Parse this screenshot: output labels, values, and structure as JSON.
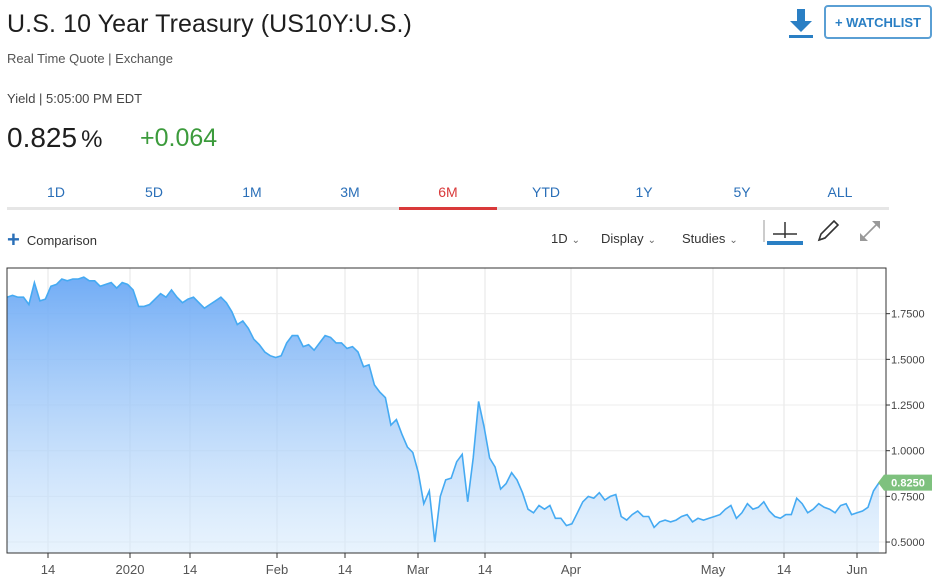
{
  "header": {
    "title": "U.S. 10 Year Treasury (US10Y:U.S.)",
    "subtitle": "Real Time Quote | Exchange",
    "watchlist_label": "+ WATCHLIST",
    "download_icon": "download-icon"
  },
  "quote": {
    "yield_time": "Yield | 5:05:00 PM EDT",
    "value": "0.825",
    "unit": "%",
    "change": "+0.064"
  },
  "tabs": [
    {
      "label": "1D"
    },
    {
      "label": "5D"
    },
    {
      "label": "1M"
    },
    {
      "label": "3M"
    },
    {
      "label": "6M",
      "active": true
    },
    {
      "label": "YTD"
    },
    {
      "label": "1Y"
    },
    {
      "label": "5Y"
    },
    {
      "label": "ALL"
    }
  ],
  "toolbar": {
    "comparison_label": "Comparison",
    "interval_label": "1D",
    "display_label": "Display",
    "studies_label": "Studies"
  },
  "colors": {
    "accent": "#2a6fb8",
    "active_tab": "#d9393a",
    "positive": "#3c9b3c",
    "line": "#45aaf2",
    "last_badge": "#7ec17e"
  },
  "chart_data": {
    "type": "area",
    "x_tick_labels": [
      "14",
      "2020",
      "14",
      "Feb",
      "14",
      "Mar",
      "14",
      "Apr",
      "May",
      "14",
      "Jun"
    ],
    "y_tick_labels": [
      "1.7500",
      "1.5000",
      "1.2500",
      "1.0000",
      "0.7500",
      "0.5000"
    ],
    "y_ticks": [
      1.75,
      1.5,
      1.25,
      1.0,
      0.75,
      0.5
    ],
    "ylim": [
      0.44,
      2.0
    ],
    "last_value_label": "0.8250",
    "last_value": 0.825,
    "values": [
      1.84,
      1.85,
      1.84,
      1.84,
      1.8,
      1.92,
      1.82,
      1.83,
      1.9,
      1.91,
      1.94,
      1.93,
      1.94,
      1.94,
      1.95,
      1.93,
      1.93,
      1.9,
      1.91,
      1.92,
      1.89,
      1.92,
      1.91,
      1.88,
      1.79,
      1.79,
      1.8,
      1.83,
      1.86,
      1.84,
      1.88,
      1.84,
      1.81,
      1.83,
      1.84,
      1.81,
      1.78,
      1.8,
      1.82,
      1.84,
      1.81,
      1.76,
      1.69,
      1.71,
      1.67,
      1.61,
      1.58,
      1.54,
      1.52,
      1.51,
      1.52,
      1.59,
      1.63,
      1.63,
      1.57,
      1.58,
      1.55,
      1.59,
      1.63,
      1.62,
      1.59,
      1.59,
      1.56,
      1.57,
      1.54,
      1.46,
      1.47,
      1.36,
      1.32,
      1.29,
      1.14,
      1.17,
      1.09,
      1.02,
      0.99,
      0.88,
      0.71,
      0.78,
      0.5,
      0.75,
      0.84,
      0.85,
      0.94,
      0.98,
      0.72,
      0.96,
      1.27,
      1.13,
      0.96,
      0.91,
      0.79,
      0.82,
      0.88,
      0.84,
      0.77,
      0.68,
      0.66,
      0.7,
      0.68,
      0.7,
      0.63,
      0.63,
      0.59,
      0.6,
      0.66,
      0.72,
      0.75,
      0.74,
      0.77,
      0.73,
      0.75,
      0.76,
      0.64,
      0.62,
      0.65,
      0.67,
      0.64,
      0.64,
      0.58,
      0.61,
      0.62,
      0.61,
      0.62,
      0.64,
      0.65,
      0.61,
      0.63,
      0.62,
      0.63,
      0.64,
      0.65,
      0.68,
      0.7,
      0.63,
      0.66,
      0.71,
      0.68,
      0.69,
      0.72,
      0.67,
      0.64,
      0.63,
      0.65,
      0.65,
      0.74,
      0.71,
      0.66,
      0.68,
      0.71,
      0.69,
      0.68,
      0.66,
      0.7,
      0.71,
      0.65,
      0.66,
      0.67,
      0.69,
      0.78,
      0.825
    ]
  }
}
